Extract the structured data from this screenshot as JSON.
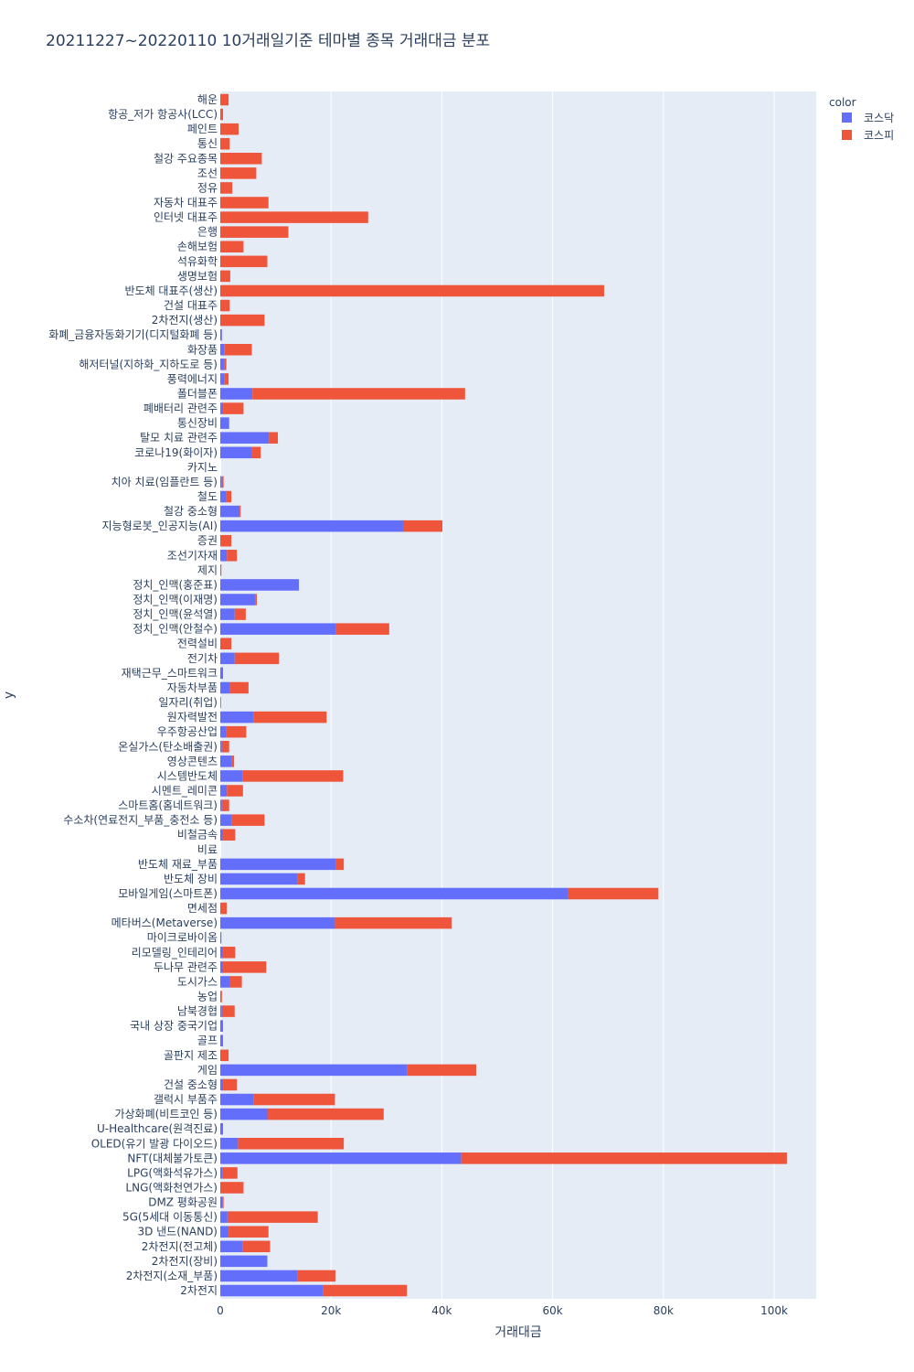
{
  "chart_data": {
    "type": "bar",
    "orientation": "horizontal",
    "stacked": true,
    "title": "20211227~20220110 10거래일기준 테마별 종목 거래대금 분포",
    "xlabel": "거래대금",
    "ylabel": "y",
    "xlim": [
      0,
      107000
    ],
    "x_ticks": [
      0,
      20000,
      40000,
      60000,
      80000,
      100000
    ],
    "x_tick_labels": [
      "0",
      "20k",
      "40k",
      "60k",
      "80k",
      "100k"
    ],
    "grid": "vertical",
    "legend": {
      "title": "color",
      "position": "top-right",
      "entries": [
        {
          "name": "코스닥",
          "color": "#636efa"
        },
        {
          "name": "코스피",
          "color": "#ef553b"
        }
      ]
    },
    "categories": [
      "2차전지",
      "2차전지(소재_부품)",
      "2차전지(장비)",
      "2차전지(전고체)",
      "3D 낸드(NAND)",
      "5G(5세대 이동통신)",
      "DMZ 평화공원",
      "LNG(액화천연가스)",
      "LPG(액화석유가스)",
      "NFT(대체불가토큰)",
      "OLED(유기 발광 다이오드)",
      "U-Healthcare(원격진료)",
      "가상화폐(비트코인 등)",
      "갤럭시 부품주",
      "건설 중소형",
      "게임",
      "골판지 제조",
      "골프",
      "국내 상장 중국기업",
      "남북경협",
      "농업",
      "도시가스",
      "두나무 관련주",
      "리모델링_인테리어",
      "마이크로바이옴",
      "메타버스(Metaverse)",
      "면세점",
      "모바일게임(스마트폰)",
      "반도체 장비",
      "반도체 재료_부품",
      "비료",
      "비철금속",
      "수소차(연료전지_부품_충전소 등)",
      "스마트홈(홈네트워크)",
      "시멘트_레미콘",
      "시스템반도체",
      "영상콘텐츠",
      "온실가스(탄소배출권)",
      "우주항공산업",
      "원자력발전",
      "일자리(취업)",
      "자동차부품",
      "재택근무_스마트워크",
      "전기차",
      "전력설비",
      "정치_인맥(안철수)",
      "정치_인맥(윤석열)",
      "정치_인맥(이재명)",
      "정치_인맥(홍준표)",
      "제지",
      "조선기자재",
      "증권",
      "지능형로봇_인공지능(AI)",
      "철강 중소형",
      "철도",
      "치아 치료(임플란트 등)",
      "카지노",
      "코로나19(화이자)",
      "탈모 치료 관련주",
      "통신장비",
      "폐배터리 관련주",
      "폴더블폰",
      "풍력에너지",
      "해저터널(지하화_지하도로 등)",
      "화장품",
      "화폐_금융자동화기기(디지털화폐 등)",
      "2차전지(생산)",
      "건설 대표주",
      "반도체 대표주(생산)",
      "생명보험",
      "석유화학",
      "손해보험",
      "은행",
      "인터넷 대표주",
      "자동차 대표주",
      "정유",
      "조선",
      "철강 주요종목",
      "통신",
      "페인트",
      "항공_저가 항공사(LCC)",
      "해운"
    ],
    "series": [
      {
        "name": "코스닥",
        "color": "#636efa",
        "values": [
          18500,
          14000,
          8500,
          4000,
          1500,
          1300,
          400,
          0,
          400,
          43500,
          3200,
          500,
          8500,
          6000,
          500,
          33800,
          0,
          500,
          500,
          300,
          0,
          1800,
          500,
          500,
          200,
          20700,
          0,
          62800,
          14000,
          20800,
          0,
          500,
          2000,
          300,
          1200,
          4000,
          2000,
          300,
          1000,
          6000,
          100,
          1800,
          500,
          2600,
          0,
          20800,
          2600,
          6300,
          14200,
          0,
          1200,
          0,
          33000,
          3500,
          1000,
          300,
          0,
          5700,
          8800,
          1600,
          500,
          5800,
          800,
          800,
          700,
          300,
          0,
          0,
          0,
          0,
          0,
          0,
          0,
          0,
          0,
          0,
          0,
          0,
          0,
          0,
          0,
          0
        ]
      },
      {
        "name": "코스피",
        "color": "#ef553b",
        "values": [
          15200,
          6800,
          0,
          5000,
          7200,
          16300,
          200,
          4200,
          2700,
          58800,
          19100,
          0,
          21000,
          14700,
          2500,
          12400,
          1500,
          0,
          0,
          2300,
          300,
          2100,
          7800,
          2200,
          0,
          21100,
          1200,
          16300,
          1300,
          1500,
          0,
          2200,
          6000,
          1300,
          2900,
          18200,
          500,
          1300,
          3700,
          13200,
          0,
          3300,
          0,
          8000,
          2000,
          9700,
          2000,
          300,
          0,
          200,
          1800,
          2000,
          7100,
          200,
          1000,
          300,
          0,
          1600,
          1600,
          0,
          3700,
          38400,
          700,
          300,
          5000,
          0,
          8000,
          1700,
          69300,
          1800,
          8500,
          4200,
          12300,
          26700,
          8700,
          2200,
          6500,
          7500,
          1700,
          3300,
          500,
          1500
        ]
      }
    ]
  }
}
